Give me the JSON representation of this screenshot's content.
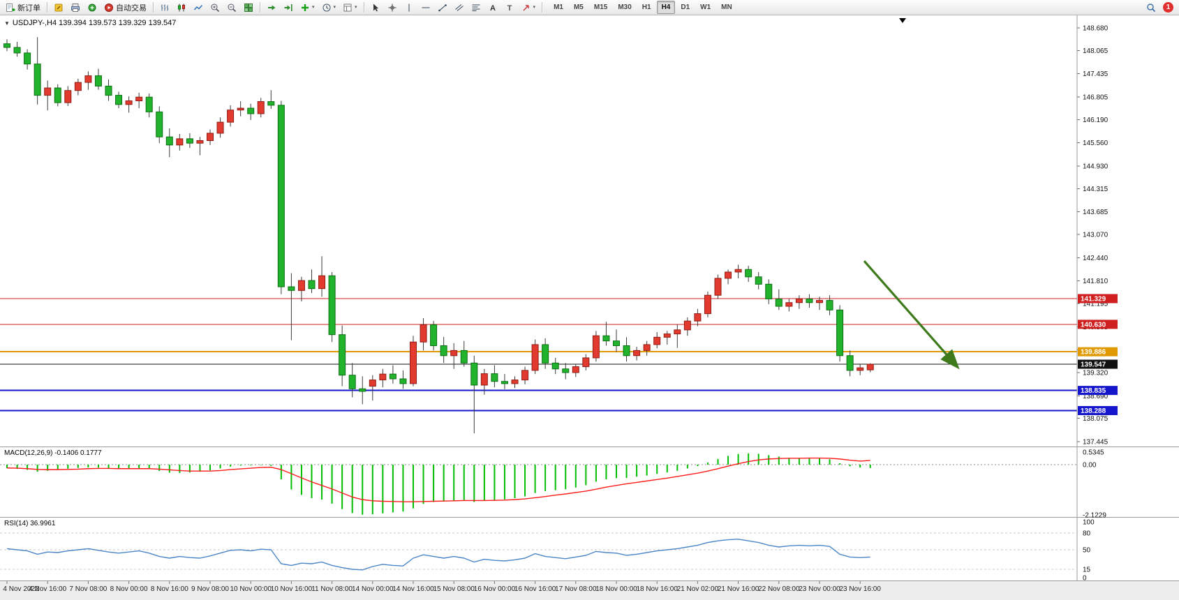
{
  "toolbar": {
    "new_order": "新订单",
    "auto_trading": "自动交易",
    "timeframes": [
      "M1",
      "M5",
      "M15",
      "M30",
      "H1",
      "H4",
      "D1",
      "W1",
      "MN"
    ],
    "active_timeframe": "H4",
    "notification_count": "1",
    "icon_buttons": [
      "new-order",
      "metaeditor",
      "print",
      "experts",
      "auto-trading",
      "bars-chart",
      "candle-chart",
      "line-chart",
      "zoom-in",
      "zoom-out",
      "tile-windows",
      "auto-scroll",
      "chart-shift",
      "indicators",
      "periods",
      "templates",
      "cursor",
      "crosshair",
      "vertical-line",
      "horizontal-line",
      "trendline",
      "channel",
      "fibonacci",
      "text",
      "text-label",
      "arrows",
      "search",
      "notifications"
    ]
  },
  "chart": {
    "header": "USDJPY-,H4  139.394 139.573 139.329 139.547",
    "macd_label": "MACD(12,26,9) -0.1406 0.1777",
    "rsi_label": "RSI(14) 36.9961"
  },
  "chart_data": {
    "type": "candlestick+indicators",
    "symbol": "USDJPY-",
    "timeframe": "H4",
    "current": {
      "open": 139.394,
      "high": 139.573,
      "low": 139.329,
      "close": 139.547
    },
    "price_axis_ticks": [
      "148.680",
      "148.065",
      "147.435",
      "146.805",
      "146.190",
      "145.560",
      "144.930",
      "144.315",
      "143.685",
      "143.070",
      "142.440",
      "141.810",
      "141.195",
      "140.565",
      "139.935",
      "139.320",
      "138.690",
      "138.075",
      "137.445"
    ],
    "price_lines": [
      {
        "price": 141.329,
        "label": "141.329",
        "color": "#cf1f1f",
        "width": 1
      },
      {
        "price": 140.63,
        "label": "140.630",
        "color": "#cf1f1f",
        "width": 1
      },
      {
        "price": 139.886,
        "label": "139.886",
        "color": "#e09a00",
        "width": 2
      },
      {
        "price": 139.547,
        "label": "139.547",
        "color": "#111111",
        "width": 1
      },
      {
        "price": 138.835,
        "label": "138.835",
        "color": "#1515cc",
        "width": 2
      },
      {
        "price": 138.288,
        "label": "138.288",
        "color": "#1515cc",
        "width": 2
      }
    ],
    "candles": [
      [
        148.25,
        148.37,
        148.05,
        148.15
      ],
      [
        148.15,
        148.3,
        147.9,
        148.0
      ],
      [
        148.0,
        148.1,
        147.55,
        147.7
      ],
      [
        147.7,
        148.43,
        146.6,
        146.85
      ],
      [
        146.85,
        147.25,
        146.44,
        147.05
      ],
      [
        147.05,
        147.15,
        146.55,
        146.65
      ],
      [
        146.65,
        147.1,
        146.56,
        146.98
      ],
      [
        146.98,
        147.3,
        146.85,
        147.2
      ],
      [
        147.2,
        147.5,
        147.0,
        147.38
      ],
      [
        147.38,
        147.57,
        147.0,
        147.1
      ],
      [
        147.1,
        147.28,
        146.7,
        146.85
      ],
      [
        146.85,
        146.95,
        146.5,
        146.6
      ],
      [
        146.6,
        146.82,
        146.38,
        146.7
      ],
      [
        146.7,
        146.92,
        146.5,
        146.8
      ],
      [
        146.8,
        146.9,
        146.25,
        146.4
      ],
      [
        146.4,
        146.55,
        145.55,
        145.72
      ],
      [
        145.72,
        145.95,
        145.17,
        145.5
      ],
      [
        145.5,
        145.8,
        145.35,
        145.67
      ],
      [
        145.67,
        145.82,
        145.42,
        145.55
      ],
      [
        145.55,
        145.72,
        145.22,
        145.62
      ],
      [
        145.62,
        145.92,
        145.5,
        145.82
      ],
      [
        145.82,
        146.25,
        145.7,
        146.12
      ],
      [
        146.12,
        146.58,
        146.0,
        146.45
      ],
      [
        146.45,
        146.69,
        146.28,
        146.5
      ],
      [
        146.5,
        146.62,
        146.18,
        146.35
      ],
      [
        146.35,
        146.78,
        146.25,
        146.68
      ],
      [
        146.68,
        146.99,
        146.48,
        146.58
      ],
      [
        146.58,
        146.7,
        141.45,
        141.65
      ],
      [
        141.65,
        142.02,
        140.2,
        141.55
      ],
      [
        141.55,
        141.92,
        141.25,
        141.82
      ],
      [
        141.82,
        142.12,
        141.48,
        141.6
      ],
      [
        141.6,
        142.48,
        141.38,
        141.95
      ],
      [
        141.95,
        142.05,
        140.15,
        140.35
      ],
      [
        140.35,
        140.6,
        138.95,
        139.25
      ],
      [
        139.25,
        139.58,
        138.65,
        138.88
      ],
      [
        138.88,
        139.22,
        138.46,
        138.81
      ],
      [
        138.95,
        139.25,
        138.56,
        139.12
      ],
      [
        139.12,
        139.42,
        138.92,
        139.28
      ],
      [
        139.28,
        139.52,
        139.02,
        139.15
      ],
      [
        139.15,
        139.38,
        138.88,
        139.02
      ],
      [
        139.02,
        140.32,
        138.95,
        140.15
      ],
      [
        140.15,
        140.8,
        139.92,
        140.62
      ],
      [
        140.62,
        140.72,
        139.92,
        140.05
      ],
      [
        140.05,
        140.29,
        139.58,
        139.78
      ],
      [
        139.78,
        140.12,
        139.42,
        139.92
      ],
      [
        139.92,
        140.18,
        139.48,
        139.58
      ],
      [
        139.58,
        139.78,
        137.67,
        138.98
      ],
      [
        138.98,
        139.42,
        138.72,
        139.29
      ],
      [
        139.29,
        139.52,
        138.92,
        139.08
      ],
      [
        139.08,
        139.28,
        138.87,
        139.02
      ],
      [
        139.02,
        139.22,
        138.9,
        139.12
      ],
      [
        139.12,
        139.48,
        139.0,
        139.38
      ],
      [
        139.38,
        140.22,
        139.28,
        140.08
      ],
      [
        140.08,
        140.25,
        139.42,
        139.58
      ],
      [
        139.58,
        139.72,
        139.28,
        139.42
      ],
      [
        139.42,
        139.58,
        139.14,
        139.32
      ],
      [
        139.32,
        139.55,
        139.2,
        139.48
      ],
      [
        139.48,
        139.82,
        139.38,
        139.72
      ],
      [
        139.72,
        140.45,
        139.62,
        140.32
      ],
      [
        140.32,
        140.7,
        140.05,
        140.18
      ],
      [
        140.18,
        140.49,
        139.88,
        140.05
      ],
      [
        140.05,
        140.28,
        139.62,
        139.78
      ],
      [
        139.78,
        140.02,
        139.65,
        139.92
      ],
      [
        139.92,
        140.18,
        139.78,
        140.08
      ],
      [
        140.08,
        140.42,
        139.98,
        140.28
      ],
      [
        140.28,
        140.45,
        140.08,
        140.37
      ],
      [
        140.37,
        140.62,
        139.99,
        140.48
      ],
      [
        140.48,
        140.82,
        140.32,
        140.72
      ],
      [
        140.72,
        141.05,
        140.58,
        140.92
      ],
      [
        140.92,
        141.52,
        140.82,
        141.42
      ],
      [
        141.42,
        141.98,
        141.32,
        141.88
      ],
      [
        141.88,
        142.12,
        141.72,
        142.05
      ],
      [
        142.05,
        142.25,
        141.88,
        142.12
      ],
      [
        142.12,
        142.22,
        141.78,
        141.92
      ],
      [
        141.92,
        142.05,
        141.58,
        141.72
      ],
      [
        141.72,
        141.85,
        141.18,
        141.32
      ],
      [
        141.32,
        141.58,
        141.02,
        141.12
      ],
      [
        141.12,
        141.32,
        140.98,
        141.22
      ],
      [
        141.22,
        141.42,
        141.05,
        141.32
      ],
      [
        141.32,
        141.45,
        141.08,
        141.22
      ],
      [
        141.22,
        141.38,
        141.02,
        141.28
      ],
      [
        141.28,
        141.42,
        140.88,
        141.02
      ],
      [
        141.02,
        141.15,
        139.62,
        139.78
      ],
      [
        139.78,
        139.92,
        139.22,
        139.38
      ],
      [
        139.38,
        139.55,
        139.25,
        139.45
      ],
      [
        139.394,
        139.573,
        139.329,
        139.547
      ]
    ],
    "macd": {
      "axis_labels": [
        "0.5345",
        "0.00",
        "-2.1229"
      ],
      "histogram": [
        -0.15,
        -0.18,
        -0.22,
        -0.3,
        -0.26,
        -0.22,
        -0.17,
        -0.14,
        -0.12,
        -0.13,
        -0.16,
        -0.19,
        -0.18,
        -0.16,
        -0.19,
        -0.27,
        -0.34,
        -0.35,
        -0.33,
        -0.3,
        -0.24,
        -0.16,
        -0.08,
        -0.04,
        -0.03,
        -0.02,
        -0.05,
        -0.62,
        -1.05,
        -1.28,
        -1.42,
        -1.48,
        -1.65,
        -1.88,
        -2.05,
        -2.12,
        -2.1,
        -2.06,
        -2.02,
        -1.98,
        -1.85,
        -1.66,
        -1.58,
        -1.56,
        -1.52,
        -1.5,
        -1.58,
        -1.52,
        -1.5,
        -1.47,
        -1.42,
        -1.34,
        -1.2,
        -1.12,
        -1.08,
        -1.04,
        -0.97,
        -0.87,
        -0.72,
        -0.62,
        -0.57,
        -0.56,
        -0.51,
        -0.46,
        -0.39,
        -0.33,
        -0.26,
        -0.16,
        -0.06,
        0.09,
        0.24,
        0.37,
        0.45,
        0.48,
        0.46,
        0.4,
        0.34,
        0.29,
        0.28,
        0.28,
        0.27,
        0.23,
        0.06,
        -0.07,
        -0.12,
        -0.1406
      ],
      "signal": [
        -0.14,
        -0.15,
        -0.17,
        -0.2,
        -0.21,
        -0.21,
        -0.2,
        -0.19,
        -0.17,
        -0.16,
        -0.16,
        -0.17,
        -0.17,
        -0.17,
        -0.17,
        -0.19,
        -0.22,
        -0.25,
        -0.27,
        -0.27,
        -0.27,
        -0.25,
        -0.21,
        -0.18,
        -0.15,
        -0.12,
        -0.11,
        -0.21,
        -0.38,
        -0.56,
        -0.73,
        -0.88,
        -1.03,
        -1.2,
        -1.37,
        -1.48,
        -1.53,
        -1.55,
        -1.56,
        -1.57,
        -1.57,
        -1.56,
        -1.55,
        -1.54,
        -1.53,
        -1.52,
        -1.52,
        -1.52,
        -1.51,
        -1.5,
        -1.48,
        -1.45,
        -1.4,
        -1.35,
        -1.29,
        -1.24,
        -1.18,
        -1.12,
        -1.04,
        -0.95,
        -0.88,
        -0.81,
        -0.75,
        -0.69,
        -0.63,
        -0.57,
        -0.5,
        -0.43,
        -0.36,
        -0.27,
        -0.17,
        -0.06,
        0.04,
        0.13,
        0.2,
        0.24,
        0.26,
        0.27,
        0.27,
        0.28,
        0.28,
        0.27,
        0.24,
        0.19,
        0.15,
        0.1777
      ]
    },
    "rsi": {
      "axis_labels": [
        "100",
        "80",
        "50",
        "15",
        "0"
      ],
      "levels": [
        80,
        50,
        15
      ],
      "values": [
        52,
        50,
        48,
        42,
        46,
        45,
        48,
        50,
        52,
        49,
        46,
        44,
        46,
        48,
        44,
        38,
        35,
        38,
        36,
        35,
        39,
        44,
        49,
        50,
        48,
        51,
        50,
        25,
        22,
        26,
        25,
        28,
        22,
        18,
        15,
        14,
        20,
        24,
        22,
        21,
        35,
        41,
        38,
        35,
        38,
        35,
        28,
        33,
        31,
        30,
        32,
        35,
        43,
        38,
        36,
        34,
        37,
        40,
        47,
        45,
        44,
        40,
        42,
        45,
        48,
        50,
        52,
        55,
        58,
        63,
        66,
        68,
        69,
        66,
        63,
        58,
        55,
        57,
        58,
        57,
        58,
        56,
        42,
        37,
        36,
        36.9961
      ]
    },
    "time_labels": [
      "4 Nov 2022",
      "4 Nov 16:00",
      "7 Nov 08:00",
      "8 Nov 00:00",
      "8 Nov 16:00",
      "9 Nov 08:00",
      "10 Nov 00:00",
      "10 Nov 16:00",
      "11 Nov 08:00",
      "14 Nov 00:00",
      "14 Nov 16:00",
      "15 Nov 08:00",
      "16 Nov 00:00",
      "16 Nov 16:00",
      "17 Nov 08:00",
      "18 Nov 00:00",
      "18 Nov 16:00",
      "21 Nov 02:00",
      "21 Nov 16:00",
      "22 Nov 08:00",
      "23 Nov 00:00",
      "23 Nov 16:00"
    ],
    "label_every_n_bars": 4,
    "trend_arrow": {
      "from_bar": 84.4,
      "from_price": 142.35,
      "to_bar": 93.5,
      "to_price": 139.5
    },
    "colors": {
      "bull_fill": "#e23a2e",
      "bull_border": "#8f1d14",
      "bear_fill": "#21b32b",
      "bear_border": "#0d6f14",
      "wick": "#3a3a3a",
      "macd_histogram": "#00bf00",
      "macd_signal": "#ff1a1a",
      "rsi_line": "#4a86c8",
      "level_dash": "#c8c8c8",
      "separator": "#9a9a9a",
      "time_strip_bg": "#ededed",
      "arrow": "#3e7a1c"
    }
  }
}
